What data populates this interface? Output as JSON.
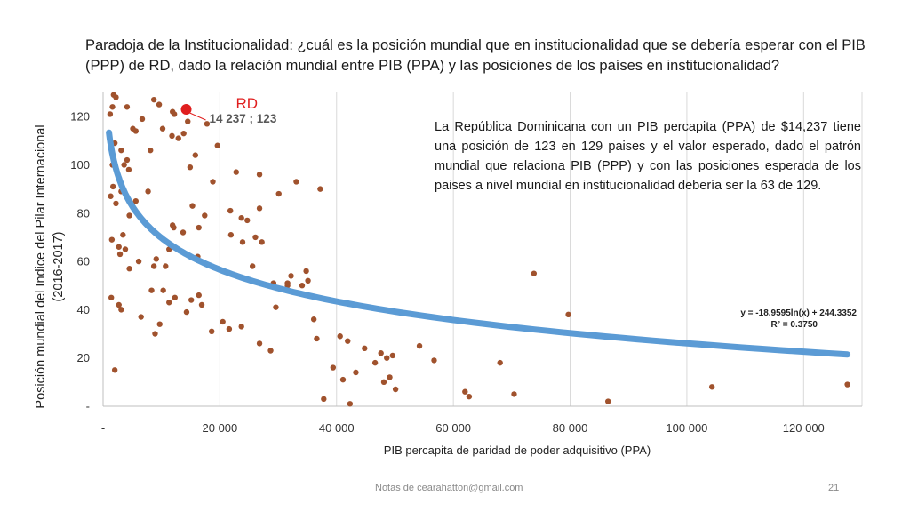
{
  "title": "Paradoja de la Institucionalidad: ¿cuál es la posición mundial que en institucionalidad que se debería esperar con el PIB (PPP) de RD, dado la relación mundial entre PIB (PPA) y las posiciones de los países en institucionalidad?",
  "note": "La República Dominicana con un PIB percapita (PPA) de $14,237 tiene una posición de 123 en 129 paises y el valor esperado, dado el patrón mundial que relaciona PIB (PPP) y con las posiciones esperada de los paises a nivel mundial en institucionalidad debería ser la 63 de 129.",
  "footer": {
    "notes": "Notas de cearahatton@gmail.com",
    "page": "21"
  },
  "colors": {
    "points": "#a0522d",
    "trend": "#5b9bd5",
    "highlight": "#e01e1e",
    "grid": "#d9d9d9"
  },
  "chart_data": {
    "type": "scatter",
    "xlabel": "PIB percapita de paridad de poder adquisitivo (PPA)",
    "ylabel_lines": [
      "Posición mundial del Indice del Pilar Internacional",
      "(2016-2017)"
    ],
    "xlim": [
      0,
      130000
    ],
    "ylim": [
      0,
      130
    ],
    "x_ticks": [
      0,
      20000,
      40000,
      60000,
      80000,
      100000,
      120000
    ],
    "x_tick_labels": [
      "-",
      "20 000",
      "40 000",
      "60 000",
      "80 000",
      "100 000",
      "120 000"
    ],
    "y_ticks": [
      0,
      20,
      40,
      60,
      80,
      100,
      120
    ],
    "y_tick_labels": [
      "-",
      "20",
      "40",
      "60",
      "80",
      "100",
      "120"
    ],
    "grid": "vertical",
    "trendline": {
      "type": "log",
      "a": -18.9595,
      "b": 244.3352,
      "x_range": [
        1000,
        127500
      ],
      "equation_label": "y = -18.9595ln(x) + 244.3352",
      "r2_label": "R² = 0.3750"
    },
    "highlight": {
      "x": 14237,
      "y": 123,
      "label": "RD",
      "value_label": "14 237 ;  123"
    },
    "points": [
      [
        1800,
        129
      ],
      [
        2200,
        128
      ],
      [
        1600,
        124
      ],
      [
        1200,
        121
      ],
      [
        4100,
        124
      ],
      [
        5100,
        115
      ],
      [
        5600,
        114
      ],
      [
        8700,
        127
      ],
      [
        9600,
        125
      ],
      [
        11900,
        122
      ],
      [
        12200,
        121
      ],
      [
        14500,
        118
      ],
      [
        17800,
        117
      ],
      [
        6700,
        119
      ],
      [
        1300,
        108
      ],
      [
        2000,
        109
      ],
      [
        3100,
        106
      ],
      [
        4100,
        102
      ],
      [
        4400,
        98
      ],
      [
        3600,
        100
      ],
      [
        1600,
        100
      ],
      [
        8100,
        106
      ],
      [
        10200,
        115
      ],
      [
        11800,
        112
      ],
      [
        12900,
        111
      ],
      [
        13800,
        113
      ],
      [
        14900,
        99
      ],
      [
        15800,
        104
      ],
      [
        19600,
        108
      ],
      [
        18800,
        93
      ],
      [
        22800,
        97
      ],
      [
        26800,
        96
      ],
      [
        1300,
        87
      ],
      [
        1700,
        91
      ],
      [
        2200,
        84
      ],
      [
        3100,
        89
      ],
      [
        4500,
        79
      ],
      [
        5600,
        85
      ],
      [
        7700,
        89
      ],
      [
        11900,
        75
      ],
      [
        12100,
        74
      ],
      [
        13700,
        72
      ],
      [
        15300,
        83
      ],
      [
        16400,
        74
      ],
      [
        17400,
        79
      ],
      [
        21800,
        81
      ],
      [
        23700,
        78
      ],
      [
        24700,
        77
      ],
      [
        26100,
        70
      ],
      [
        26800,
        82
      ],
      [
        27200,
        68
      ],
      [
        30100,
        88
      ],
      [
        33100,
        93
      ],
      [
        37200,
        90
      ],
      [
        1500,
        69
      ],
      [
        2700,
        66
      ],
      [
        3400,
        71
      ],
      [
        3800,
        65
      ],
      [
        2900,
        63
      ],
      [
        4500,
        57
      ],
      [
        6100,
        60
      ],
      [
        8700,
        58
      ],
      [
        9100,
        61
      ],
      [
        10700,
        58
      ],
      [
        11300,
        65
      ],
      [
        16200,
        62
      ],
      [
        21900,
        71
      ],
      [
        23900,
        68
      ],
      [
        25600,
        58
      ],
      [
        29200,
        51
      ],
      [
        31600,
        50
      ],
      [
        32200,
        54
      ],
      [
        34100,
        50
      ],
      [
        34800,
        56
      ],
      [
        35100,
        52
      ],
      [
        1400,
        45
      ],
      [
        2700,
        42
      ],
      [
        3100,
        40
      ],
      [
        6500,
        37
      ],
      [
        8300,
        48
      ],
      [
        8900,
        30
      ],
      [
        9700,
        34
      ],
      [
        10300,
        48
      ],
      [
        11300,
        43
      ],
      [
        12300,
        45
      ],
      [
        14300,
        39
      ],
      [
        15100,
        44
      ],
      [
        16400,
        46
      ],
      [
        16900,
        42
      ],
      [
        18600,
        31
      ],
      [
        20500,
        35
      ],
      [
        21600,
        32
      ],
      [
        23700,
        33
      ],
      [
        26800,
        26
      ],
      [
        28700,
        23
      ],
      [
        29600,
        41
      ],
      [
        31600,
        51
      ],
      [
        36100,
        36
      ],
      [
        36600,
        28
      ],
      [
        2000,
        15
      ],
      [
        37800,
        3
      ],
      [
        39400,
        16
      ],
      [
        40600,
        29
      ],
      [
        41100,
        11
      ],
      [
        41900,
        27
      ],
      [
        42300,
        1
      ],
      [
        43300,
        14
      ],
      [
        44800,
        24
      ],
      [
        46600,
        18
      ],
      [
        47600,
        22
      ],
      [
        48100,
        10
      ],
      [
        48600,
        20
      ],
      [
        49100,
        12
      ],
      [
        49600,
        21
      ],
      [
        50100,
        7
      ],
      [
        54200,
        25
      ],
      [
        56700,
        19
      ],
      [
        62000,
        6
      ],
      [
        62700,
        4
      ],
      [
        68000,
        18
      ],
      [
        70400,
        5
      ],
      [
        73800,
        55
      ],
      [
        79700,
        38
      ],
      [
        86500,
        2
      ],
      [
        104300,
        8
      ],
      [
        127500,
        9
      ]
    ]
  }
}
